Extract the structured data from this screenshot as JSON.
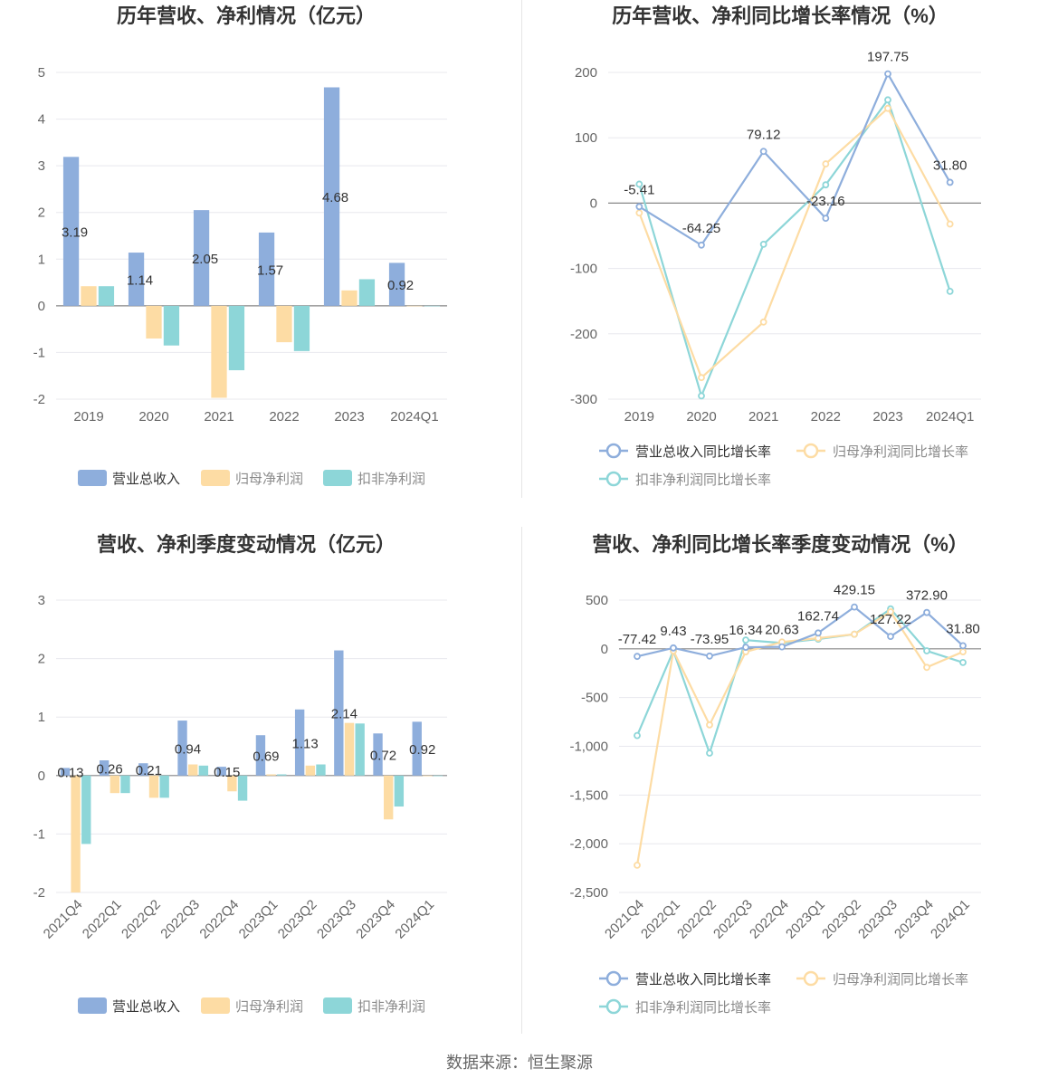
{
  "colors": {
    "revenue": "#8eaedc",
    "parent_profit": "#fddca4",
    "deducted_profit": "#8dd6d8",
    "grid": "#e8e8ee",
    "axis": "#666666"
  },
  "footer": "数据来源：恒生聚源",
  "chart_data": [
    {
      "type": "bar",
      "title": "历年营收、净利情况（亿元）",
      "categories": [
        "2019",
        "2020",
        "2021",
        "2022",
        "2023",
        "2024Q1"
      ],
      "yticks": [
        "5",
        "4",
        "3",
        "2",
        "1",
        "0",
        "-1",
        "-2"
      ],
      "ylim": [
        -2,
        5
      ],
      "grid": true,
      "legend_position": "bottom",
      "series": [
        {
          "name": "营业总收入",
          "values": [
            3.19,
            1.14,
            2.05,
            1.57,
            4.68,
            0.92
          ],
          "labels": [
            "3.19",
            "1.14",
            "2.05",
            "1.57",
            "4.68",
            "0.92"
          ]
        },
        {
          "name": "归母净利润",
          "values": [
            0.42,
            -0.7,
            -1.97,
            -0.78,
            0.33,
            -0.01
          ]
        },
        {
          "name": "扣非净利润",
          "values": [
            0.42,
            -0.85,
            -1.38,
            -0.97,
            0.57,
            -0.01
          ]
        }
      ]
    },
    {
      "type": "line",
      "title": "历年营收、净利同比增长率情况（%）",
      "categories": [
        "2019",
        "2020",
        "2021",
        "2022",
        "2023",
        "2024Q1"
      ],
      "yticks": [
        "200",
        "100",
        "0",
        "-100",
        "-200",
        "-300"
      ],
      "ylim": [
        -300,
        200
      ],
      "grid": true,
      "legend_position": "bottom",
      "series": [
        {
          "name": "营业总收入同比增长率",
          "values": [
            -5.41,
            -64.25,
            79.12,
            -23.16,
            197.75,
            31.8
          ],
          "labels": [
            "-5.41",
            "-64.25",
            "79.12",
            "-23.16",
            "197.75",
            "31.80"
          ]
        },
        {
          "name": "归母净利润同比增长率",
          "values": [
            -15,
            -267,
            -182,
            60,
            145,
            -32
          ]
        },
        {
          "name": "扣非净利润同比增长率",
          "values": [
            29,
            -295,
            -63,
            28,
            158,
            -135
          ]
        }
      ]
    },
    {
      "type": "bar",
      "title": "营收、净利季度变动情况（亿元）",
      "categories": [
        "2021Q4",
        "2022Q1",
        "2022Q2",
        "2022Q3",
        "2022Q4",
        "2023Q1",
        "2023Q2",
        "2023Q3",
        "2023Q4",
        "2024Q1"
      ],
      "yticks": [
        "3",
        "2",
        "1",
        "0",
        "-1",
        "-2"
      ],
      "ylim": [
        -2,
        3
      ],
      "grid": true,
      "legend_position": "bottom",
      "series": [
        {
          "name": "营业总收入",
          "values": [
            0.13,
            0.26,
            0.21,
            0.94,
            0.15,
            0.69,
            1.13,
            2.14,
            0.72,
            0.92
          ],
          "labels": [
            "0.13",
            "0.26",
            "0.21",
            "0.94",
            "0.15",
            "0.69",
            "1.13",
            "2.14",
            "0.72",
            "0.92"
          ]
        },
        {
          "name": "归母净利润",
          "values": [
            -2.0,
            -0.3,
            -0.38,
            0.19,
            -0.27,
            0.02,
            0.17,
            0.9,
            -0.75,
            -0.01
          ]
        },
        {
          "name": "扣非净利润",
          "values": [
            -1.17,
            -0.3,
            -0.38,
            0.17,
            -0.43,
            0.02,
            0.19,
            0.89,
            -0.53,
            -0.01
          ]
        }
      ]
    },
    {
      "type": "line",
      "title": "营收、净利同比增长率季度变动情况（%）",
      "categories": [
        "2021Q4",
        "2022Q1",
        "2022Q2",
        "2022Q3",
        "2022Q4",
        "2023Q1",
        "2023Q2",
        "2023Q3",
        "2023Q4",
        "2024Q1"
      ],
      "yticks": [
        "500",
        "0",
        "-500",
        "-1,000",
        "-1,500",
        "-2,000",
        "-2,500"
      ],
      "ylim": [
        -2500,
        500
      ],
      "grid": true,
      "legend_position": "bottom",
      "series": [
        {
          "name": "营业总收入同比增长率",
          "values": [
            -77.42,
            9.43,
            -73.95,
            16.34,
            20.63,
            162.74,
            429.15,
            127.22,
            372.9,
            31.8
          ],
          "labels": [
            "-77.42",
            "9.43",
            "-73.95",
            "16.34",
            "20.63",
            "162.74",
            "429.15",
            "127.22",
            "372.90",
            "31.80"
          ]
        },
        {
          "name": "归母净利润同比增长率",
          "values": [
            -2220,
            -20,
            -780,
            -30,
            70,
            110,
            150,
            380,
            -190,
            -30
          ]
        },
        {
          "name": "扣非净利润同比增长率",
          "values": [
            -890,
            -20,
            -1070,
            90,
            60,
            100,
            150,
            410,
            -20,
            -140
          ]
        }
      ]
    }
  ]
}
